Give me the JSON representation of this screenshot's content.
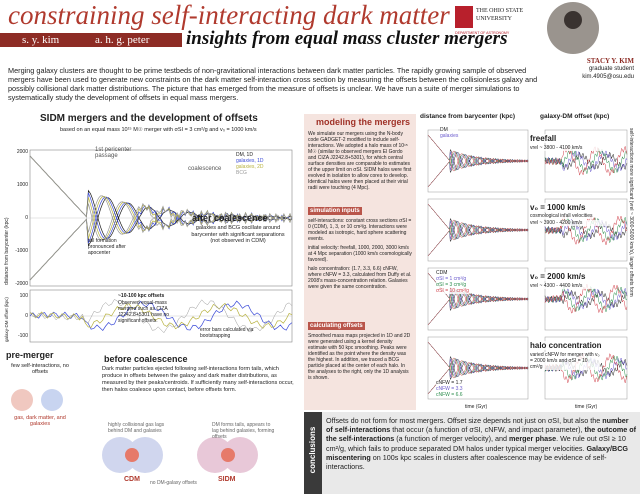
{
  "header": {
    "title": "constraining self-interacting dark matter",
    "authors": [
      "s. y. kim",
      "a. h. g. peter"
    ],
    "subtitle": "insights from equal mass cluster mergers",
    "institution": [
      "THE OHIO STATE",
      "UNIVERSITY"
    ],
    "department": "DEPARTMENT OF ASTRONOMY",
    "presenter": {
      "name": "STACY Y. KIM",
      "role": "graduate student",
      "email": "kim.4905@osu.edu"
    }
  },
  "intro": "Merging galaxy clusters are thought to be prime testbeds of non-gravitational interactions between dark matter particles. The rapidly growing sample of observed mergers have been used to generate new constraints on the dark matter self-interaction cross section by measuring the offsets between the collisionless galaxy and possibly collisional dark matter distributions. The picture that has emerged from the measure of offsets is unclear. We have run a suite of merger simulations to systematically study the development of offsets in equal mass mergers.",
  "left": {
    "heading": "SIDM mergers and the development of offsets",
    "subheading": "based on an equal mass 10¹⁵ M☉ merger with σSI = 3 cm²/g and v₀ = 1000 km/s",
    "pericenter": "1st pericenter passage",
    "coalescence": "coalescence",
    "legend": [
      "DM, 1D",
      "galaxies, 1D",
      "galaxies, 2D",
      "BCG"
    ],
    "y_label": "distance from barycenter (kpc)",
    "y_ticks": [
      "2000",
      "1000",
      "0",
      "-1000",
      "-2000"
    ],
    "tail_note": "tail formation pronounced after apocenter",
    "after_title": "after coalescence",
    "after_text": "galaxies and BCG oscillate around barycenter with significant separations (not observed in CDM)",
    "offset_label": "galaxy-DM offset (kpc)",
    "offset_ticks": [
      "100",
      "0",
      "-100"
    ],
    "offset_note_title": "~10-100 kpc offsets",
    "offset_note": "Observed equal-mass mergers such as CIZA J2242.8+5301 have no significant offsets.",
    "error_note": "error bars calculated via bootstrapping",
    "pre_title": "pre-merger",
    "pre_text": "few self-interactions, no offsets",
    "pre_legend": "gas, dark matter, and galaxies",
    "before_title": "before coalescence",
    "before_text": "Dark matter particles ejected following self-interactions form tails, which produce in offsets between the galaxy and dark matter distributions, as measured by their peaks/centroids. If sufficiently many self-interactions occur, then halos coalesce upon contact, before offsets form.",
    "cdm_note": "highly collisional gas lags behind DM and galaxies",
    "cdm_note2": "no DM-galaxy offsets",
    "cdm": "CDM",
    "sidm_note": "DM forms tails, appears to lag behind galaxies, forming offsets",
    "sidm": "SIDM"
  },
  "middle": {
    "heading": "modeling the mergers",
    "intro": "We simulate our mergers using the N-body code GADGET-2 modified to include self-interactions. We adopted a halo mass of 10¹⁵ M☉ (similar to observed mergers El Gordo and CIZA J2242.8+5301), for which central surface densities are comparable to estimates of the upper limit on σSI. SIDM halos were first evolved in isolation to allow cores to develop. Identical halos were then placed at their virial radii were touching (4 Mpc).",
    "inputs_title": "simulation inputs",
    "inputs": [
      "self-interactions: constant cross sections σSI = 0 (CDM), 1, 3, or 10 cm²/g. Interactions were modeled as isotropic, hard sphere scattering events.",
      "initial velocity: freefall, 1000, 2000, 3000 km/s at 4 Mpc separation (1000 km/s cosmologically favored).",
      "halo concentration: (1.7, 3.3, 6.6) cNFW, where cNFW = 3.3, calculated from Duffy et al. 2008's mass-concentration relation. Galaxies were given the same concentration."
    ],
    "offsets_title": "calculating offsets",
    "offsets": "Smoothed mass maps projected in 1D and 2D were generated using a kernel density estimate with 50 kpc smoothing. Peaks were identified as the point where the density was the highest. In addition, we traced a BCG particle placed at the center of each halo. In the analyses to the right, only the 1D analysis is shown."
  },
  "right": {
    "col1": "distance from barycenter (kpc)",
    "col2": "galaxy-DM offset (kpc)",
    "rows": [
      {
        "title": "freefall",
        "note": "vrel ~ 3800 - 4100 km/s"
      },
      {
        "title": "v₀ = 1000 km/s",
        "sub": "cosmological infall velocities",
        "note": "vrel ~ 3900 - 4200 km/s"
      },
      {
        "title": "v₀ = 2000 km/s",
        "note": "vrel ~ 4300 - 4400 km/s"
      },
      {
        "title": "halo concentration",
        "note": "varied cNFW for merger with v₀ = 2000 km/s and σSI = 10 cm²/g"
      }
    ],
    "legend_top": [
      "DM",
      "galaxies"
    ],
    "legend_sigma": [
      "CDM",
      "σSI = 1 cm²/g",
      "σSI = 3 cm²/g",
      "σSI = 10 cm²/g"
    ],
    "legend_c": [
      "cNFW = 1.7",
      "cNFW = 3.3",
      "cNFW = 6.6"
    ],
    "time": "time (Gyr)",
    "side": "self-interactions more significant (vrel ~ 3000-5000 km/s), larger offsets form"
  },
  "conclusions": {
    "label": "conclusions",
    "parts": [
      {
        "text": "Offsets do not form for most mergers. Offset size depends not just on σSI, but also the ",
        "bold": false
      },
      {
        "text": "number of self-interactions",
        "bold": true
      },
      {
        "text": " that occur (a function of σSI, cNFW, and impact parameter), ",
        "bold": false
      },
      {
        "text": "the outcome of the self-interactions",
        "bold": true
      },
      {
        "text": " (a function of merger velocity), and ",
        "bold": false
      },
      {
        "text": "merger phase",
        "bold": true
      },
      {
        "text": ". We rule out σSI ≥ 10 cm²/g, which fails to produce separated DM halos under typical merger velocities. ",
        "bold": false
      },
      {
        "text": "Galaxy/BCG miscentering",
        "bold": true
      },
      {
        "text": " on 100s kpc scales in clusters after coalescence may be evidence of self-interactions.",
        "bold": false
      }
    ]
  }
}
